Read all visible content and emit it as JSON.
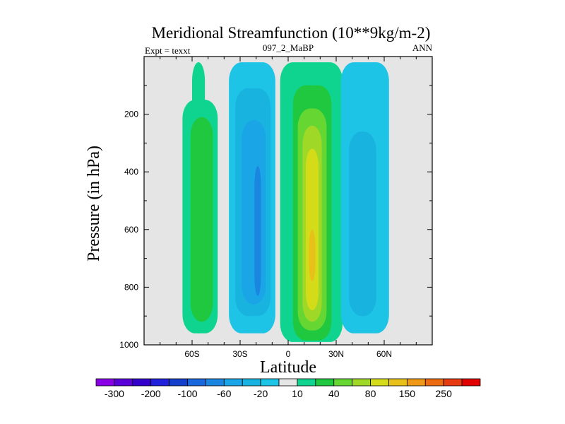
{
  "chart_data": {
    "type": "heatmap",
    "title": "Meridional Streamfunction (10**9kg/m-2)",
    "left_label": "Expt = texxt",
    "center_label": "097_2_MaBP",
    "right_label": "ANN",
    "xlabel": "Latitude",
    "ylabel": "Pressure (in hPa)",
    "xlim": [
      -90,
      90
    ],
    "ylim": [
      1000,
      0
    ],
    "x_ticks": [
      {
        "value": -60,
        "label": "60S"
      },
      {
        "value": -30,
        "label": "30S"
      },
      {
        "value": 0,
        "label": "0"
      },
      {
        "value": 30,
        "label": "30N"
      },
      {
        "value": 60,
        "label": "60N"
      }
    ],
    "y_ticks": [
      {
        "value": 200,
        "label": "200"
      },
      {
        "value": 400,
        "label": "400"
      },
      {
        "value": 600,
        "label": "600"
      },
      {
        "value": 800,
        "label": "800"
      },
      {
        "value": 1000,
        "label": "1000"
      }
    ],
    "colorbar": {
      "levels": [
        -300,
        -250,
        -200,
        -150,
        -100,
        -80,
        -60,
        -40,
        -20,
        -10,
        10,
        20,
        40,
        60,
        80,
        100,
        150,
        200,
        250,
        300
      ],
      "labels": [
        "-300",
        "-200",
        "-100",
        "-60",
        "-20",
        "10",
        "40",
        "80",
        "150",
        "250"
      ],
      "colors": [
        "#8a00e6",
        "#5a00d8",
        "#3300cc",
        "#2222dd",
        "#1540cc",
        "#1a66dd",
        "#1a86e0",
        "#1aa6e6",
        "#19b3e0",
        "#1dc4e6",
        "#e5e5e5",
        "#0fd490",
        "#20c840",
        "#66d633",
        "#a0d828",
        "#d4dc1a",
        "#e8c01a",
        "#ee9915",
        "#ec6a10",
        "#e63a10",
        "#e00000"
      ]
    },
    "contour_cells": [
      {
        "name": "sh-polar-cell",
        "level": "10..20",
        "lat": [
          -60,
          -52
        ],
        "p_top": 20,
        "p_bot": 960
      },
      {
        "name": "sh-ferrel-cell-outer",
        "level": "10..20",
        "lat": [
          -66,
          -44
        ],
        "p_top": 150,
        "p_bot": 960
      },
      {
        "name": "sh-ferrel-cell-inner",
        "level": "20..40",
        "lat": [
          -61,
          -47
        ],
        "p_top": 210,
        "p_bot": 920
      },
      {
        "name": "sh-hadley-outer",
        "level": "-10..-20",
        "lat": [
          -37,
          -8
        ],
        "p_top": 20,
        "p_bot": 960
      },
      {
        "name": "sh-hadley-mid",
        "level": "-20..-40",
        "lat": [
          -33,
          -11
        ],
        "p_top": 110,
        "p_bot": 900
      },
      {
        "name": "sh-hadley-inner",
        "level": "-40..-60",
        "lat": [
          -29,
          -14
        ],
        "p_top": 220,
        "p_bot": 860
      },
      {
        "name": "sh-hadley-core",
        "level": "-60..-80",
        "lat": [
          -21,
          -17
        ],
        "p_top": 380,
        "p_bot": 830
      },
      {
        "name": "nh-hadley-outer",
        "level": "10..20",
        "lat": [
          -5,
          34
        ],
        "p_top": 20,
        "p_bot": 990
      },
      {
        "name": "nh-hadley-mid",
        "level": "20..40",
        "lat": [
          3,
          27
        ],
        "p_top": 100,
        "p_bot": 985
      },
      {
        "name": "nh-hadley-inner",
        "level": "40..60",
        "lat": [
          6,
          24
        ],
        "p_top": 180,
        "p_bot": 950
      },
      {
        "name": "nh-hadley-core",
        "level": "60..80",
        "lat": [
          9,
          21
        ],
        "p_top": 240,
        "p_bot": 920
      },
      {
        "name": "nh-hadley-max",
        "level": "80..100",
        "lat": [
          11,
          19
        ],
        "p_top": 320,
        "p_bot": 880
      },
      {
        "name": "nh-hadley-peak",
        "level": "100..150",
        "lat": [
          13,
          17
        ],
        "p_top": 600,
        "p_bot": 780
      },
      {
        "name": "nh-ferrel-cell-outer",
        "level": "-10..-20",
        "lat": [
          33,
          63
        ],
        "p_top": 20,
        "p_bot": 960
      },
      {
        "name": "nh-ferrel-cell-inner",
        "level": "-20..-40",
        "lat": [
          38,
          55
        ],
        "p_top": 260,
        "p_bot": 900
      }
    ]
  }
}
